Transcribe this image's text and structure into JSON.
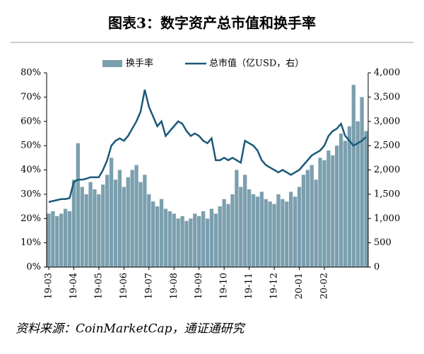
{
  "chart_data": {
    "type": "bar_line",
    "title": "图表3：数字资产总市值和换手率",
    "source": "资料来源：CoinMarketCap，通证通研究",
    "categories": [
      "19-03",
      null,
      null,
      null,
      null,
      null,
      "19-04",
      null,
      null,
      null,
      null,
      null,
      "19-05",
      null,
      null,
      null,
      null,
      null,
      "19-06",
      null,
      null,
      null,
      null,
      null,
      "19-07",
      null,
      null,
      null,
      null,
      null,
      "19-08",
      null,
      null,
      null,
      null,
      null,
      "19-09",
      null,
      null,
      null,
      null,
      null,
      "19-10",
      null,
      null,
      null,
      null,
      null,
      "19-11",
      null,
      null,
      null,
      null,
      null,
      "19-12",
      null,
      null,
      null,
      null,
      null,
      "20-01",
      null,
      null,
      null,
      null,
      null,
      "20-02",
      null,
      null,
      null,
      null,
      null,
      null,
      null,
      null,
      null,
      null
    ],
    "series": [
      {
        "name": "换手率",
        "color": "#7b9fae",
        "axis": "y",
        "values": [
          22,
          23,
          21,
          22,
          24,
          23,
          36,
          51,
          33,
          30,
          35,
          32,
          30,
          34,
          38,
          45,
          36,
          40,
          33,
          37,
          40,
          42,
          35,
          38,
          30,
          27,
          25,
          28,
          24,
          23,
          22,
          20,
          21,
          19,
          20,
          22,
          21,
          23,
          20,
          24,
          22,
          25,
          28,
          26,
          30,
          40,
          33,
          38,
          32,
          30,
          29,
          31,
          28,
          27,
          26,
          30,
          28,
          27,
          31,
          29,
          33,
          38,
          40,
          42,
          36,
          45,
          44,
          48,
          46,
          50,
          55,
          52,
          58,
          75,
          60,
          70,
          56
        ]
      },
      {
        "name": "总市值（亿USD，右）",
        "color": "#1b5a78",
        "axis": "y2",
        "values": [
          1340,
          1360,
          1380,
          1400,
          1400,
          1420,
          1750,
          1800,
          1800,
          1820,
          1850,
          1850,
          1850,
          2000,
          2200,
          2500,
          2600,
          2650,
          2600,
          2700,
          2850,
          3000,
          3200,
          3650,
          3300,
          3100,
          2900,
          3000,
          2700,
          2800,
          2900,
          3000,
          2950,
          2800,
          2700,
          2750,
          2700,
          2600,
          2550,
          2650,
          2200,
          2200,
          2250,
          2200,
          2250,
          2200,
          2150,
          2600,
          2550,
          2500,
          2400,
          2200,
          2100,
          2050,
          2000,
          1950,
          2000,
          1950,
          1900,
          1950,
          2000,
          2100,
          2200,
          2300,
          2350,
          2400,
          2500,
          2700,
          2800,
          2850,
          2950,
          2700,
          2600,
          2500,
          2550,
          2600,
          2680
        ]
      }
    ],
    "ylim": [
      0,
      80
    ],
    "yticks": [
      {
        "value": 0,
        "label": "0%"
      },
      {
        "value": 10,
        "label": "10%"
      },
      {
        "value": 20,
        "label": "20%"
      },
      {
        "value": 30,
        "label": "30%"
      },
      {
        "value": 40,
        "label": "40%"
      },
      {
        "value": 50,
        "label": "50%"
      },
      {
        "value": 60,
        "label": "60%"
      },
      {
        "value": 70,
        "label": "70%"
      },
      {
        "value": 80,
        "label": "80%"
      }
    ],
    "y2lim": [
      0,
      4000
    ],
    "y2ticks": [
      0,
      500,
      {
        "value": 1000,
        "label": "1,000"
      },
      {
        "value": 1500,
        "label": "1,500"
      },
      {
        "value": 2000,
        "label": "2,000"
      },
      {
        "value": 2500,
        "label": "2,500"
      },
      {
        "value": 3000,
        "label": "3,000"
      },
      {
        "value": 3500,
        "label": "3,500"
      },
      {
        "value": 4000,
        "label": "4,000"
      }
    ]
  }
}
